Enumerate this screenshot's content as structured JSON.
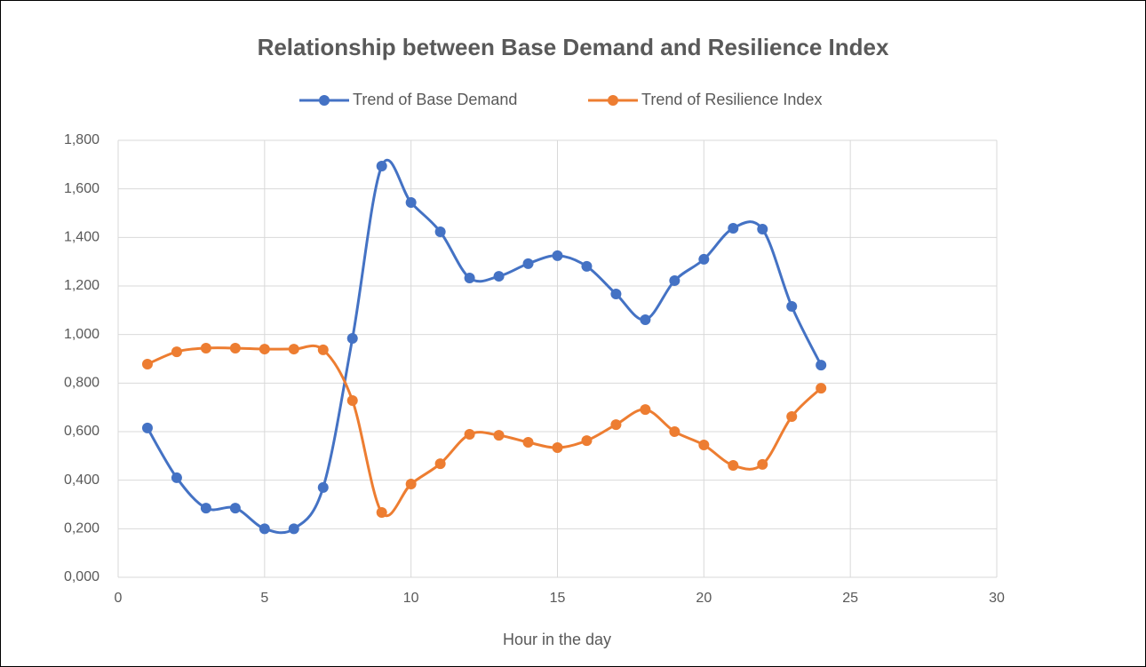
{
  "chart_data": {
    "type": "line",
    "title": "Relationship between Base Demand and Resilience Index",
    "x_label": "Hour in the day",
    "x": [
      1,
      2,
      3,
      4,
      5,
      6,
      7,
      8,
      9,
      10,
      11,
      12,
      13,
      14,
      15,
      16,
      17,
      18,
      19,
      20,
      21,
      22,
      23,
      24
    ],
    "series": [
      {
        "name": "Trend of Base Demand",
        "color": "#4472c4",
        "values": [
          0.615,
          0.41,
          0.285,
          0.285,
          0.2,
          0.2,
          0.37,
          0.984,
          1.694,
          1.544,
          1.423,
          1.233,
          1.24,
          1.292,
          1.325,
          1.281,
          1.167,
          1.061,
          1.222,
          1.31,
          1.438,
          1.434,
          1.116,
          0.874
        ]
      },
      {
        "name": "Trend of Resilience Index",
        "color": "#ed7d31",
        "values": [
          0.878,
          0.929,
          0.944,
          0.944,
          0.94,
          0.94,
          0.937,
          0.728,
          0.267,
          0.384,
          0.468,
          0.589,
          0.585,
          0.556,
          0.534,
          0.563,
          0.629,
          0.691,
          0.6,
          0.545,
          0.461,
          0.465,
          0.662,
          0.779
        ]
      }
    ],
    "xlim": [
      0,
      30
    ],
    "xticks": [
      0,
      5,
      10,
      15,
      20,
      25,
      30
    ],
    "ylim": [
      0,
      1.8
    ],
    "yticks": [
      {
        "value": 0,
        "label": "0,000"
      },
      {
        "value": 0.2,
        "label": "0,200"
      },
      {
        "value": 0.4,
        "label": "0,400"
      },
      {
        "value": 0.6,
        "label": "0,600"
      },
      {
        "value": 0.8,
        "label": "0,800"
      },
      {
        "value": 1.0,
        "label": "1,000"
      },
      {
        "value": 1.2,
        "label": "1,200"
      },
      {
        "value": 1.4,
        "label": "1,400"
      },
      {
        "value": 1.6,
        "label": "1,600"
      },
      {
        "value": 1.8,
        "label": "1,800"
      }
    ],
    "grid": true,
    "smooth": true,
    "legend": "top"
  }
}
